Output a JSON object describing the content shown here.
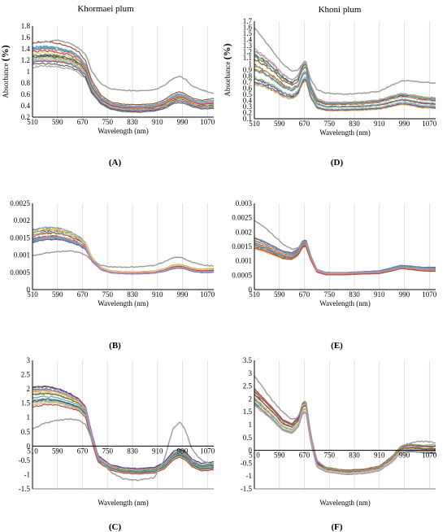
{
  "colors": [
    "#2e6fb7",
    "#ef7d22",
    "#9c9c9c",
    "#f2be00",
    "#5a8fd0",
    "#6aa945",
    "#23476f",
    "#9c4a1a",
    "#5b5b5b",
    "#8a6d00",
    "#8fb3e0",
    "#f0a66d",
    "#b6b6b6",
    "#f6d364",
    "#2b8a8a",
    "#a7c98a",
    "#c93b3b",
    "#7e57a8",
    "#4aa9c8",
    "#d98cb3"
  ],
  "chart_data": [
    {
      "id": "A",
      "type": "line",
      "title": "Khormaei plum",
      "xlabel": "Wavelength (nm)",
      "ylabel": "Absorbance",
      "ylabel_unit": "(%)",
      "panel_label": "(A)",
      "xlim": [
        510,
        1090
      ],
      "ylim": [
        0.2,
        1.8
      ],
      "xticks": [
        "510",
        "590",
        "670",
        "750",
        "830",
        "910",
        "990",
        "1070"
      ],
      "yticks": [
        "0.2",
        "0.4",
        "0.6",
        "0.8",
        "1",
        "1.2",
        "1.4",
        "1.6",
        "1.8"
      ],
      "series_profile": {
        "x": [
          510,
          550,
          590,
          630,
          660,
          680,
          700,
          730,
          760,
          800,
          850,
          900,
          930,
          960,
          980,
          1000,
          1020,
          1050,
          1090
        ],
        "mean": [
          1.28,
          1.3,
          1.28,
          1.24,
          1.15,
          1.02,
          0.72,
          0.5,
          0.4,
          0.36,
          0.35,
          0.37,
          0.42,
          0.52,
          0.55,
          0.52,
          0.46,
          0.42,
          0.44
        ],
        "spread": [
          0.22,
          0.22,
          0.22,
          0.2,
          0.19,
          0.16,
          0.12,
          0.08,
          0.07,
          0.07,
          0.07,
          0.07,
          0.08,
          0.09,
          0.1,
          0.09,
          0.08,
          0.08,
          0.09
        ],
        "count": 20
      },
      "outlier": {
        "x": [
          510,
          550,
          590,
          630,
          660,
          680,
          700,
          730,
          760,
          800,
          850,
          900,
          930,
          960,
          980,
          1000,
          1020,
          1050,
          1090
        ],
        "y": [
          1.5,
          1.52,
          1.55,
          1.5,
          1.4,
          1.3,
          1.0,
          0.78,
          0.7,
          0.67,
          0.66,
          0.68,
          0.75,
          0.88,
          0.92,
          0.86,
          0.75,
          0.68,
          0.62
        ]
      }
    },
    {
      "id": "D",
      "type": "line",
      "title": "Khoni plum",
      "xlabel": "Wavelength (nm)",
      "ylabel": "Absorbance",
      "ylabel_unit": "(%)",
      "panel_label": "(D)",
      "xlim": [
        510,
        1090
      ],
      "ylim": [
        0.1,
        1.7
      ],
      "xticks": [
        "510",
        "590",
        "670",
        "750",
        "830",
        "910",
        "990",
        "1070"
      ],
      "yticks": [
        "0.1",
        "0.2",
        "0.3",
        "0.4",
        "0.5",
        "0.6",
        "0.7",
        "0.8",
        "0.9",
        "1",
        "1.1",
        "1.2",
        "1.3",
        "1.4",
        "1.5",
        "1.6",
        "1.7"
      ],
      "series_profile": {
        "x": [
          510,
          540,
          570,
          600,
          630,
          650,
          665,
          675,
          690,
          710,
          740,
          800,
          860,
          910,
          950,
          980,
          1010,
          1050,
          1090
        ],
        "mean": [
          0.95,
          0.88,
          0.78,
          0.65,
          0.58,
          0.65,
          0.85,
          0.88,
          0.55,
          0.35,
          0.3,
          0.3,
          0.31,
          0.33,
          0.38,
          0.42,
          0.4,
          0.36,
          0.35
        ],
        "spread": [
          0.3,
          0.27,
          0.24,
          0.2,
          0.17,
          0.17,
          0.18,
          0.18,
          0.12,
          0.09,
          0.08,
          0.08,
          0.08,
          0.09,
          0.1,
          0.1,
          0.1,
          0.1,
          0.1
        ],
        "count": 20
      },
      "outlier": {
        "x": [
          510,
          540,
          570,
          600,
          630,
          650,
          665,
          675,
          690,
          710,
          740,
          800,
          860,
          910,
          950,
          980,
          1010,
          1050,
          1090
        ],
        "y": [
          1.6,
          1.4,
          1.2,
          1.0,
          0.88,
          0.9,
          1.0,
          1.02,
          0.75,
          0.58,
          0.52,
          0.5,
          0.52,
          0.55,
          0.65,
          0.72,
          0.72,
          0.7,
          0.68
        ]
      }
    },
    {
      "id": "B",
      "type": "line",
      "title": "",
      "xlabel": "Wavelength (nm)",
      "ylabel": "",
      "panel_label": "(B)",
      "xlim": [
        510,
        1090
      ],
      "ylim": [
        0,
        0.0025
      ],
      "xticks": [
        "510",
        "590",
        "670",
        "750",
        "830",
        "910",
        "990",
        "1070"
      ],
      "yticks": [
        "0",
        "0.0005",
        "0.001",
        "0.0015",
        "0.002",
        "0.0025"
      ],
      "series_profile": {
        "x": [
          510,
          550,
          590,
          630,
          660,
          680,
          700,
          730,
          760,
          800,
          850,
          900,
          930,
          960,
          980,
          1000,
          1020,
          1050,
          1090
        ],
        "mean": [
          0.0016,
          0.00168,
          0.00168,
          0.00158,
          0.00145,
          0.0013,
          0.0009,
          0.00062,
          0.00053,
          0.0005,
          0.0005,
          0.00052,
          0.00058,
          0.00068,
          0.0007,
          0.00066,
          0.0006,
          0.00056,
          0.00058
        ],
        "spread": [
          0.00028,
          0.00028,
          0.00026,
          0.00024,
          0.0002,
          0.00016,
          0.0001,
          6e-05,
          5e-05,
          5e-05,
          5e-05,
          5e-05,
          6e-05,
          8e-05,
          8e-05,
          7e-05,
          7e-05,
          7e-05,
          8e-05
        ],
        "count": 20
      },
      "outlier": {
        "x": [
          510,
          550,
          590,
          630,
          660,
          680,
          700,
          730,
          760,
          800,
          850,
          900,
          930,
          960,
          980,
          1000,
          1020,
          1050,
          1090
        ],
        "y": [
          0.00098,
          0.00105,
          0.0011,
          0.00112,
          0.00108,
          0.001,
          0.00085,
          0.0007,
          0.00066,
          0.00065,
          0.00066,
          0.0007,
          0.0008,
          0.00092,
          0.00094,
          0.00088,
          0.0008,
          0.00072,
          0.00068
        ]
      }
    },
    {
      "id": "E",
      "type": "line",
      "title": "",
      "xlabel": "Wavelength (nm)",
      "ylabel": "",
      "panel_label": "(E)",
      "xlim": [
        510,
        1090
      ],
      "ylim": [
        0,
        0.003
      ],
      "xticks": [
        "510",
        "590",
        "670",
        "750",
        "830",
        "910",
        "990",
        "1070"
      ],
      "yticks": [
        "0",
        "0.0005",
        "0.001",
        "0.0015",
        "0.002",
        "0.0025",
        "0.003"
      ],
      "series_profile": {
        "x": [
          510,
          540,
          570,
          600,
          630,
          650,
          665,
          675,
          690,
          710,
          740,
          800,
          860,
          910,
          950,
          980,
          1010,
          1050,
          1090
        ],
        "mean": [
          0.0016,
          0.0015,
          0.00135,
          0.0012,
          0.00115,
          0.0013,
          0.00158,
          0.0016,
          0.0011,
          0.00065,
          0.00055,
          0.00055,
          0.00058,
          0.0006,
          0.0007,
          0.00078,
          0.00075,
          0.0007,
          0.0007
        ],
        "spread": [
          0.00022,
          0.0002,
          0.00018,
          0.00016,
          0.00014,
          0.00014,
          0.00014,
          0.00014,
          0.0001,
          6e-05,
          5e-05,
          5e-05,
          5e-05,
          6e-05,
          7e-05,
          7e-05,
          7e-05,
          8e-05,
          9e-05
        ],
        "count": 20
      },
      "outlier": {
        "x": [
          510,
          540,
          570,
          600,
          630,
          650,
          665,
          675,
          690,
          710,
          740,
          800,
          860,
          910,
          950,
          980,
          1010,
          1050,
          1090
        ],
        "y": [
          0.0024,
          0.0022,
          0.0019,
          0.0016,
          0.0014,
          0.00145,
          0.00165,
          0.00165,
          0.00115,
          0.0007,
          0.0006,
          0.00058,
          0.0006,
          0.00062,
          0.0007,
          0.00078,
          0.00076,
          0.00072,
          0.0007
        ]
      }
    },
    {
      "id": "C",
      "type": "line",
      "title": "",
      "xlabel": "Wavelength (nm)",
      "ylabel": "",
      "panel_label": "(C)",
      "xlim": [
        510,
        1090
      ],
      "ylim": [
        -1.5,
        3
      ],
      "xticks": [
        "510",
        "590",
        "670",
        "750",
        "830",
        "910",
        "990",
        "1070"
      ],
      "yticks": [
        "-1.5",
        "-1",
        "-0.5",
        "0",
        "0.5",
        "1",
        "1.5",
        "2",
        "2.5",
        "3"
      ],
      "series_profile": {
        "x": [
          510,
          550,
          590,
          630,
          660,
          680,
          700,
          720,
          760,
          800,
          850,
          900,
          930,
          960,
          980,
          1000,
          1020,
          1050,
          1090
        ],
        "mean": [
          1.75,
          1.8,
          1.75,
          1.6,
          1.45,
          1.2,
          0.3,
          -0.45,
          -0.75,
          -0.85,
          -0.88,
          -0.85,
          -0.7,
          -0.35,
          -0.25,
          -0.35,
          -0.6,
          -0.75,
          -0.7
        ],
        "spread": [
          0.35,
          0.33,
          0.3,
          0.26,
          0.22,
          0.2,
          0.15,
          0.12,
          0.1,
          0.1,
          0.1,
          0.1,
          0.12,
          0.15,
          0.15,
          0.15,
          0.14,
          0.14,
          0.15
        ],
        "count": 20
      },
      "outlier": {
        "x": [
          510,
          550,
          590,
          630,
          660,
          680,
          700,
          720,
          760,
          800,
          850,
          900,
          930,
          960,
          980,
          1000,
          1020,
          1050,
          1090
        ],
        "y": [
          0.6,
          0.8,
          0.9,
          0.95,
          0.9,
          0.75,
          0.2,
          -0.4,
          -0.9,
          -1.15,
          -1.2,
          -1.1,
          -0.5,
          0.6,
          0.85,
          0.55,
          -0.1,
          -0.5,
          -0.65
        ]
      }
    },
    {
      "id": "F",
      "type": "line",
      "title": "",
      "xlabel": "Wavelength (nm)",
      "ylabel": "",
      "panel_label": "(F)",
      "xlim": [
        510,
        1090
      ],
      "ylim": [
        -1.5,
        3.5
      ],
      "xticks": [
        "510",
        "590",
        "670",
        "750",
        "830",
        "910",
        "990",
        "1070"
      ],
      "yticks": [
        "-1.5",
        "-1",
        "-0.5",
        "0",
        "0.5",
        "1",
        "1.5",
        "2",
        "2.5",
        "3",
        "3.5"
      ],
      "series_profile": {
        "x": [
          510,
          540,
          570,
          600,
          630,
          650,
          665,
          675,
          690,
          710,
          740,
          800,
          860,
          910,
          950,
          980,
          1010,
          1050,
          1090
        ],
        "mean": [
          2.1,
          1.75,
          1.4,
          1.0,
          0.85,
          1.1,
          1.65,
          1.7,
          0.5,
          -0.55,
          -0.75,
          -0.85,
          -0.82,
          -0.7,
          -0.35,
          0.05,
          0.1,
          0.05,
          0.05
        ],
        "spread": [
          0.35,
          0.32,
          0.28,
          0.25,
          0.22,
          0.22,
          0.25,
          0.25,
          0.2,
          0.12,
          0.1,
          0.1,
          0.1,
          0.1,
          0.12,
          0.14,
          0.15,
          0.15,
          0.18
        ],
        "count": 20
      },
      "outlier": {
        "x": [
          510,
          540,
          570,
          600,
          630,
          650,
          665,
          675,
          690,
          710,
          740,
          800,
          860,
          910,
          950,
          980,
          1010,
          1050,
          1090
        ],
        "y": [
          2.9,
          2.4,
          1.9,
          1.5,
          1.2,
          1.3,
          1.8,
          1.85,
          0.6,
          -0.4,
          -0.7,
          -0.8,
          -0.78,
          -0.65,
          -0.3,
          0.15,
          0.3,
          0.35,
          0.3
        ]
      }
    }
  ]
}
